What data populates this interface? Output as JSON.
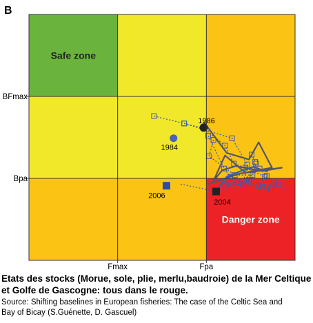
{
  "chart_data": {
    "type": "scatter",
    "panel_label": "B",
    "x_ticks": [
      "Fmax",
      "Fpa"
    ],
    "y_ticks": [
      "BFmax",
      "Bpa"
    ],
    "zones": [
      {
        "name": "Safe zone",
        "x": [
          0,
          1
        ],
        "y": [
          2,
          3
        ],
        "color": "#6ab43e"
      },
      {
        "name": "",
        "x": [
          1,
          2
        ],
        "y": [
          2,
          3
        ],
        "color": "#f2e82a"
      },
      {
        "name": "",
        "x": [
          2,
          3
        ],
        "y": [
          2,
          3
        ],
        "color": "#fbc314"
      },
      {
        "name": "",
        "x": [
          0,
          1
        ],
        "y": [
          1,
          2
        ],
        "color": "#f2e82a"
      },
      {
        "name": "",
        "x": [
          1,
          2
        ],
        "y": [
          1,
          2
        ],
        "color": "#f2e82a"
      },
      {
        "name": "",
        "x": [
          2,
          3
        ],
        "y": [
          1,
          2
        ],
        "color": "#fbc314"
      },
      {
        "name": "",
        "x": [
          0,
          1
        ],
        "y": [
          0,
          1
        ],
        "color": "#fbc314"
      },
      {
        "name": "",
        "x": [
          1,
          2
        ],
        "y": [
          0,
          1
        ],
        "color": "#fbc314"
      },
      {
        "name": "Danger zone",
        "x": [
          2,
          3
        ],
        "y": [
          0,
          1
        ],
        "color": "#ed2227"
      }
    ],
    "series": [
      {
        "style": "dotted",
        "color": "#3f5aa8",
        "marker": "open-square",
        "points": [
          [
            1.41,
            1.76
          ],
          [
            1.75,
            1.67
          ],
          [
            1.97,
            1.61
          ],
          [
            2.21,
            1.4
          ],
          [
            2.31,
            1.18
          ],
          [
            2.44,
            1.13
          ],
          [
            2.66,
            1.02
          ],
          [
            2.76,
            0.97
          ]
        ]
      },
      {
        "style": "dotted",
        "color": "#3f5aa8",
        "marker": "open-square",
        "points": [
          [
            1.75,
            1.67
          ],
          [
            2.29,
            1.49
          ],
          [
            2.46,
            1.17
          ],
          [
            2.41,
            0.92
          ],
          [
            2.63,
            0.9
          ],
          [
            2.73,
            0.87
          ]
        ]
      },
      {
        "style": "dotted",
        "color": "#3f5aa8",
        "marker": "open-square",
        "points": [
          [
            2.02,
            1.52
          ],
          [
            2.2,
            1.12
          ],
          [
            2.27,
            1.02
          ],
          [
            2.6,
            1.12
          ],
          [
            2.68,
            1.03
          ],
          [
            2.59,
            0.91
          ],
          [
            2.81,
            0.93
          ]
        ]
      },
      {
        "style": "dotted",
        "color": "#3f5aa8",
        "marker": "open-square",
        "points": [
          [
            2.08,
            1.47
          ],
          [
            2.03,
            1.27
          ],
          [
            2.32,
            1.04
          ],
          [
            2.52,
            1.04
          ],
          [
            2.22,
            0.92
          ],
          [
            2.5,
            0.96
          ],
          [
            2.56,
            1.18
          ]
        ]
      },
      {
        "style": "dotted",
        "color": "#3f5aa8",
        "marker": "open-square",
        "points": [
          [
            2.51,
            1.29
          ],
          [
            2.55,
            1.2
          ],
          [
            2.53,
            1.11
          ],
          [
            2.48,
            0.98
          ],
          [
            2.35,
            0.96
          ]
        ]
      },
      {
        "style": "dotted",
        "color": "#3f5aa8",
        "marker": "none",
        "points": [
          [
            1.71,
            0.93
          ],
          [
            2.11,
            0.84
          ],
          [
            2.27,
            0.9
          ],
          [
            2.42,
            0.94
          ]
        ]
      },
      {
        "style": "solid",
        "color": "#555566",
        "marker": "none",
        "points": [
          [
            1.97,
            1.69
          ],
          [
            2.12,
            1.47
          ],
          [
            2.23,
            1.31
          ],
          [
            2.48,
            1.23
          ],
          [
            2.59,
            1.44
          ],
          [
            2.74,
            1.13
          ],
          [
            2.44,
            1.07
          ],
          [
            2.21,
            1.28
          ],
          [
            2.08,
            0.97
          ],
          [
            2.18,
            1.1
          ],
          [
            2.33,
            1.15
          ],
          [
            2.63,
            1.09
          ],
          [
            2.85,
            1.13
          ],
          [
            2.38,
            1.06
          ],
          [
            2.02,
            0.93
          ]
        ]
      },
      {
        "style": "solid",
        "color": "#3f5aa8",
        "marker": "none",
        "points": [
          [
            2.11,
            0.84
          ],
          [
            2.23,
            1.02
          ],
          [
            2.39,
            1.09
          ],
          [
            2.53,
            1.14
          ],
          [
            2.69,
            1.08
          ]
        ]
      }
    ],
    "highlighted_points": [
      {
        "label": "1984",
        "x": 1.63,
        "y": 1.49,
        "marker": "circle",
        "color": "#4a64b4"
      },
      {
        "label": "1986",
        "x": 1.97,
        "y": 1.62,
        "marker": "circle",
        "color": "#222222"
      },
      {
        "label": "2006",
        "x": 1.55,
        "y": 0.91,
        "marker": "square",
        "color": "#2d4ea2"
      },
      {
        "label": "2004",
        "x": 2.11,
        "y": 0.84,
        "marker": "square",
        "color": "#222222"
      }
    ]
  },
  "caption": {
    "main": "Etats des stocks (Morue, sole, plie, merlu,baudroie) de la Mer Celtique et Golfe de Gascogne: tous dans le rouge.",
    "source_line1": "Source: Shifting baselines in European fisheries: The case of the Celtic Sea and",
    "source_line2": "Bay of Bicay (S.Guénette, D. Gascuel)"
  }
}
